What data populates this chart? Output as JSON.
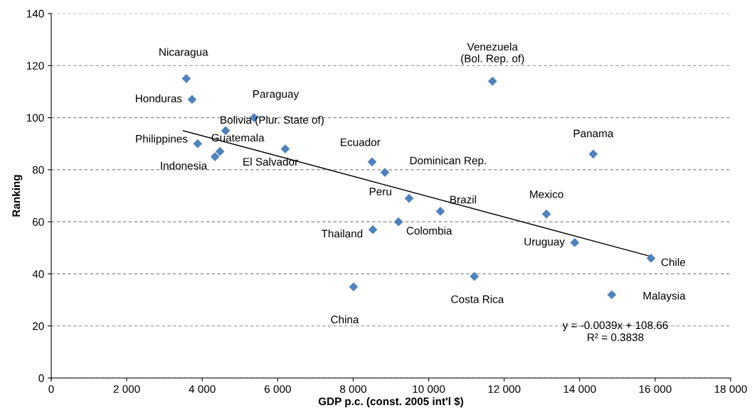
{
  "chart_data": {
    "type": "scatter",
    "xlabel": "GDP p.c. (const. 2005 int'l $)",
    "ylabel": "Ranking",
    "xlim": [
      0,
      18000
    ],
    "ylim": [
      0,
      140
    ],
    "xticks": [
      0,
      {
        "value": 2000,
        "label": "2 000"
      },
      {
        "value": 4000,
        "label": "4 000"
      },
      {
        "value": 6000,
        "label": "6 000"
      },
      {
        "value": 8000,
        "label": "8 000"
      },
      {
        "value": 10000,
        "label": "10 000"
      },
      {
        "value": 12000,
        "label": "12 000"
      },
      {
        "value": 14000,
        "label": "14 000"
      },
      {
        "value": 16000,
        "label": "16 000"
      },
      {
        "value": 18000,
        "label": "18 000"
      }
    ],
    "yticks": [
      0,
      20,
      40,
      60,
      80,
      100,
      120,
      140
    ],
    "grid": "y",
    "legend": false,
    "series": [
      {
        "marker": "diamond",
        "color": "#4f81bd",
        "x": [
          3580,
          3730,
          5370,
          11690,
          4620,
          3880,
          4470,
          4340,
          6200,
          8500,
          8840,
          14360,
          9480,
          10310,
          13120,
          9200,
          8520,
          13870,
          15890,
          11210,
          8010,
          14850
        ],
        "values": [
          115,
          107,
          100,
          114,
          95,
          90,
          87,
          85,
          88,
          83,
          79,
          86,
          69,
          64,
          63,
          60,
          57,
          52,
          46,
          39,
          35,
          32
        ]
      },
      {
        "type": "line",
        "marker": "none",
        "color": "#000000",
        "x": [
          3500,
          15890
        ],
        "values": [
          95.0,
          46.7
        ]
      }
    ],
    "annotations": [
      {
        "text": "Nicaragua",
        "x": 3580,
        "y": 115
      },
      {
        "text": "Honduras",
        "x": 3730,
        "y": 107
      },
      {
        "text": "Paraguay",
        "x": 5370,
        "y": 100
      },
      {
        "text": "Venezuela\n(Bol. Rep. of)",
        "x": 11690,
        "y": 114
      },
      {
        "text": "Bolivia (Plur. State of)",
        "x": 4620,
        "y": 95
      },
      {
        "text": "Philippines",
        "x": 3880,
        "y": 90
      },
      {
        "text": "Guatemala",
        "x": 4470,
        "y": 87
      },
      {
        "text": "Indonesia",
        "x": 4340,
        "y": 85
      },
      {
        "text": "El Salvador",
        "x": 6200,
        "y": 88
      },
      {
        "text": "Ecuador",
        "x": 8500,
        "y": 83
      },
      {
        "text": "Dominican Rep.",
        "x": 8840,
        "y": 79
      },
      {
        "text": "Panama",
        "x": 14360,
        "y": 86
      },
      {
        "text": "Peru",
        "x": 9480,
        "y": 69
      },
      {
        "text": "Brazil",
        "x": 10310,
        "y": 64
      },
      {
        "text": "Mexico",
        "x": 13120,
        "y": 63
      },
      {
        "text": "Colombia",
        "x": 9200,
        "y": 60
      },
      {
        "text": "Thailand",
        "x": 8520,
        "y": 57
      },
      {
        "text": "Uruguay",
        "x": 13870,
        "y": 52
      },
      {
        "text": "Chile",
        "x": 15890,
        "y": 46
      },
      {
        "text": "Costa Rica",
        "x": 11210,
        "y": 39
      },
      {
        "text": "China",
        "x": 8010,
        "y": 35
      },
      {
        "text": "Malaysia",
        "x": 14850,
        "y": 32
      },
      "y = -0.0039x + 108.66",
      "R² = 0.3838"
    ]
  }
}
